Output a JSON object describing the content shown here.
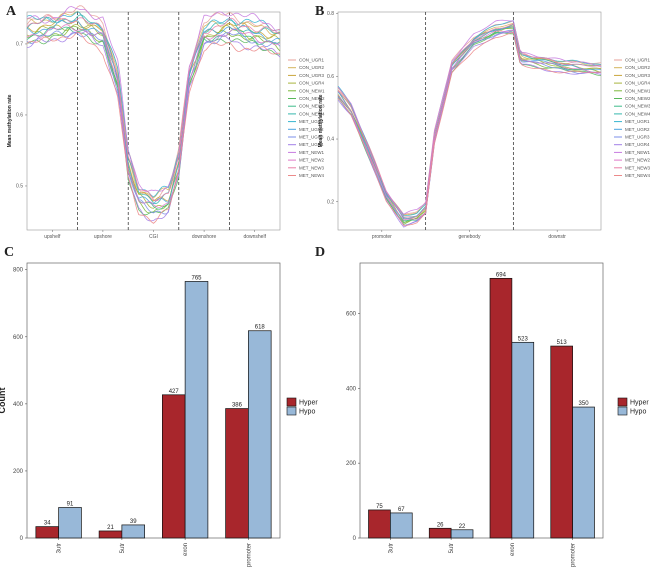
{
  "panels": {
    "a": "A",
    "b": "B",
    "c": "C",
    "d": "D"
  },
  "chart_data": [
    {
      "type": "line",
      "panel": "A",
      "xlabel": "",
      "ylabel": "Mean methylation rate",
      "x_ticks": [
        "upshelf",
        "upshore",
        "CGI",
        "downshore",
        "downshelf"
      ],
      "y_ticks": [
        0.7,
        0.6,
        0.5
      ],
      "ylim": [
        0.438,
        0.745
      ],
      "region_boundaries": [
        1,
        2,
        3,
        4
      ],
      "legend_position": "right",
      "legend": [
        "CON_UGR1",
        "CON_UGR2",
        "CON_UGR3",
        "CON_UGR4",
        "CON_NEW1",
        "CON_NEW2",
        "CON_NEW3",
        "CON_NEW4",
        "MET_UGR1",
        "MET_UGR2",
        "MET_UGR3",
        "MET_UGR4",
        "MET_NEW1",
        "MET_NEW2",
        "MET_NEW3",
        "MET_NEW4"
      ],
      "colors": [
        "#e7a19a",
        "#d4b45c",
        "#c9a63b",
        "#a8b43d",
        "#7cb93a",
        "#58b85a",
        "#3dbb8a",
        "#34b7ad",
        "#35b4cf",
        "#4aa3e0",
        "#7b8fe8",
        "#a27ee8",
        "#c67be0",
        "#df78c8",
        "#ea7fa8",
        "#ec8a8a"
      ],
      "profile": {
        "x": [
          0,
          0.5,
          1.0,
          1.5,
          1.8,
          2.0,
          2.2,
          2.5,
          2.8,
          3.0,
          3.2,
          3.5,
          4.0,
          4.5,
          5.0
        ],
        "base": [
          0.715,
          0.722,
          0.728,
          0.712,
          0.645,
          0.528,
          0.483,
          0.471,
          0.479,
          0.53,
          0.65,
          0.712,
          0.721,
          0.712,
          0.703
        ]
      },
      "offsets": [
        0.012,
        0.008,
        0.004,
        0.0,
        -0.004,
        -0.008,
        -0.003,
        0.006,
        0.01,
        0.002,
        -0.006,
        -0.01,
        0.014,
        -0.002,
        0.007,
        -0.012
      ]
    },
    {
      "type": "line",
      "panel": "B",
      "xlabel": "",
      "ylabel": "Mean methylation rate",
      "x_ticks": [
        "promoter",
        "genebody",
        "downstr"
      ],
      "y_ticks": [
        0.8,
        0.6,
        0.4,
        0.2
      ],
      "ylim": [
        0.11,
        0.805
      ],
      "region_boundaries": [
        1,
        2
      ],
      "legend_position": "right",
      "legend": [
        "CON_UGR1",
        "CON_UGR2",
        "CON_UGR3",
        "CON_UGR4",
        "CON_NEW1",
        "CON_NEW2",
        "CON_NEW3",
        "CON_NEW4",
        "MET_UGR1",
        "MET_UGR2",
        "MET_UGR3",
        "MET_UGR4",
        "MET_NEW1",
        "MET_NEW2",
        "MET_NEW3",
        "MET_NEW4"
      ],
      "colors": [
        "#e7a19a",
        "#d4b45c",
        "#c9a63b",
        "#a8b43d",
        "#7cb93a",
        "#58b85a",
        "#3dbb8a",
        "#34b7ad",
        "#35b4cf",
        "#4aa3e0",
        "#7b8fe8",
        "#a27ee8",
        "#c67be0",
        "#df78c8",
        "#ea7fa8",
        "#ec8a8a"
      ],
      "profile": {
        "x": [
          0,
          0.15,
          0.35,
          0.55,
          0.75,
          0.9,
          1.0,
          1.1,
          1.3,
          1.55,
          1.8,
          2.0,
          2.08,
          2.3,
          2.6,
          3.0
        ],
        "base": [
          0.545,
          0.49,
          0.36,
          0.22,
          0.14,
          0.15,
          0.175,
          0.4,
          0.63,
          0.71,
          0.745,
          0.755,
          0.655,
          0.645,
          0.63,
          0.62
        ]
      },
      "offsets": [
        0.012,
        0.008,
        0.004,
        0.0,
        -0.004,
        -0.008,
        -0.003,
        0.006,
        0.01,
        0.002,
        -0.006,
        -0.01,
        0.014,
        -0.002,
        0.007,
        -0.012
      ]
    },
    {
      "type": "bar",
      "panel": "C",
      "xlabel": "",
      "ylabel": "Count",
      "categories": [
        "3utr",
        "5utr",
        "exon",
        "promoter"
      ],
      "series": [
        {
          "name": "Hyper",
          "values": [
            34,
            21,
            427,
            386
          ],
          "color": "#a8262c"
        },
        {
          "name": "Hypo",
          "values": [
            91,
            39,
            765,
            618
          ],
          "color": "#98b8d8"
        }
      ],
      "ylim": [
        0,
        820
      ],
      "y_ticks": [
        0,
        200,
        400,
        600,
        800
      ],
      "legend_position": "right"
    },
    {
      "type": "bar",
      "panel": "D",
      "xlabel": "",
      "ylabel": "",
      "categories": [
        "3utr",
        "5utr",
        "exon",
        "promoter"
      ],
      "series": [
        {
          "name": "Hyper",
          "values": [
            75,
            26,
            694,
            513
          ],
          "color": "#a8262c"
        },
        {
          "name": "Hypo",
          "values": [
            67,
            22,
            523,
            350
          ],
          "color": "#98b8d8"
        }
      ],
      "ylim": [
        0,
        735
      ],
      "y_ticks": [
        0,
        200,
        400,
        600
      ],
      "legend_position": "right"
    }
  ]
}
